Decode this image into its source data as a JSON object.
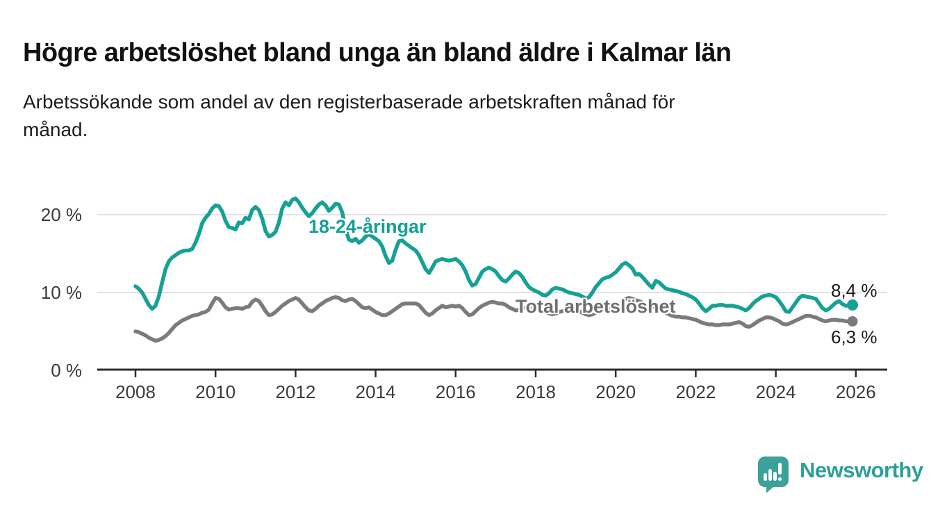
{
  "title": "Högre arbetslöshet bland unga än bland äldre i Kalmar län",
  "subtitle_lines": [
    "Arbetssökande som andel av den registerbaserade arbetskraften månad för",
    "månad."
  ],
  "colors": {
    "accent_teal": "#16a195",
    "line_gray": "#7b7b7e",
    "label_gray": "#6f6f73",
    "gridline": "#d9d9d9",
    "axis": "#2d2d2d",
    "axis_text": "#3a3a3a",
    "text_dark": "#1a1a1a",
    "logo_teal": "#3ba19a",
    "logo_text_teal": "#2ba099"
  },
  "chart_data": {
    "type": "line",
    "title": "Högre arbetslöshet bland unga än bland äldre i Kalmar län",
    "subtitle": "Arbetssökande som andel av den registerbaserade arbetskraften månad för månad.",
    "frequency": "monthly",
    "x_start": "2008-01",
    "x_end": "2025-12",
    "x_tick_labels": [
      "2008",
      "2010",
      "2012",
      "2014",
      "2016",
      "2018",
      "2020",
      "2022",
      "2024",
      "2026"
    ],
    "y_axis": {
      "tick_values": [
        0,
        10,
        20
      ],
      "tick_labels": [
        "0 %",
        "10 %",
        "20 %"
      ]
    },
    "ylim": [
      0,
      23
    ],
    "grid": "horizontal",
    "legend_position": "inline-labels",
    "series": [
      {
        "name": "18-24-åringar",
        "color": "#16a195",
        "end_label": "8,4 %",
        "end_value": 8.4,
        "values": [
          10.8,
          10.5,
          10.0,
          9.2,
          8.4,
          7.9,
          8.3,
          9.5,
          11.3,
          13.0,
          14.0,
          14.5,
          14.8,
          15.1,
          15.3,
          15.4,
          15.4,
          15.6,
          16.4,
          17.5,
          18.9,
          19.6,
          20.1,
          20.8,
          21.2,
          21.1,
          20.4,
          19.2,
          18.4,
          18.3,
          18.1,
          19.0,
          18.9,
          19.6,
          19.4,
          20.6,
          21.0,
          20.6,
          19.5,
          17.9,
          17.2,
          17.4,
          17.8,
          19.0,
          20.8,
          21.6,
          21.2,
          21.9,
          22.1,
          21.6,
          20.9,
          20.3,
          19.8,
          20.2,
          20.8,
          21.3,
          21.6,
          21.2,
          20.5,
          20.9,
          21.4,
          21.3,
          20.3,
          18.2,
          16.8,
          16.6,
          16.9,
          16.4,
          16.7,
          17.2,
          17.5,
          17.2,
          16.9,
          16.6,
          15.9,
          14.7,
          13.8,
          14.1,
          15.5,
          16.6,
          16.7,
          16.3,
          16.0,
          15.7,
          15.4,
          14.8,
          13.9,
          13.0,
          12.5,
          13.2,
          14.0,
          14.2,
          14.3,
          14.2,
          14.1,
          14.2,
          14.3,
          14.0,
          13.5,
          12.7,
          11.6,
          10.9,
          11.1,
          11.9,
          12.7,
          13.0,
          13.2,
          13.0,
          12.7,
          12.1,
          11.6,
          11.4,
          11.8,
          12.3,
          12.7,
          12.5,
          12.0,
          11.3,
          10.7,
          10.4,
          10.2,
          10.0,
          9.7,
          9.6,
          9.9,
          10.4,
          10.6,
          10.5,
          10.4,
          10.2,
          10.0,
          9.9,
          9.8,
          9.7,
          9.5,
          9.2,
          9.4,
          10.0,
          10.7,
          11.2,
          11.7,
          11.9,
          12.0,
          12.3,
          12.6,
          13.1,
          13.6,
          13.8,
          13.5,
          13.1,
          12.3,
          12.4,
          12.0,
          11.5,
          11.0,
          10.6,
          11.5,
          11.3,
          10.9,
          10.5,
          10.4,
          10.3,
          10.2,
          10.1,
          9.9,
          9.8,
          9.6,
          9.4,
          9.1,
          8.6,
          8.0,
          7.6,
          7.9,
          8.3,
          8.3,
          8.4,
          8.4,
          8.3,
          8.3,
          8.3,
          8.2,
          8.1,
          7.9,
          7.7,
          8.0,
          8.5,
          8.9,
          9.2,
          9.5,
          9.6,
          9.7,
          9.6,
          9.4,
          8.9,
          8.3,
          7.6,
          7.5,
          8.1,
          8.7,
          9.3,
          9.6,
          9.5,
          9.4,
          9.3,
          9.2,
          8.6,
          8.0,
          7.7,
          7.9,
          8.3,
          8.7,
          8.9,
          8.5,
          8.3,
          8.3,
          8.4
        ]
      },
      {
        "name": "Total arbetslöshet",
        "color": "#7b7b7e",
        "end_label": "6,3 %",
        "end_value": 6.3,
        "values": [
          5.0,
          4.9,
          4.7,
          4.5,
          4.2,
          4.0,
          3.8,
          3.9,
          4.1,
          4.4,
          4.8,
          5.3,
          5.8,
          6.1,
          6.4,
          6.6,
          6.8,
          7.0,
          7.1,
          7.2,
          7.4,
          7.5,
          7.8,
          8.6,
          9.3,
          9.2,
          8.7,
          8.1,
          7.8,
          7.9,
          8.0,
          8.0,
          7.9,
          8.1,
          8.2,
          8.8,
          9.1,
          8.9,
          8.3,
          7.6,
          7.1,
          7.2,
          7.5,
          7.9,
          8.3,
          8.6,
          8.9,
          9.1,
          9.3,
          9.1,
          8.6,
          8.1,
          7.7,
          7.6,
          7.9,
          8.3,
          8.6,
          8.9,
          9.1,
          9.3,
          9.4,
          9.3,
          9.0,
          8.9,
          9.1,
          9.2,
          8.9,
          8.5,
          8.1,
          8.0,
          8.1,
          7.8,
          7.5,
          7.3,
          7.1,
          7.1,
          7.3,
          7.6,
          7.9,
          8.2,
          8.5,
          8.6,
          8.6,
          8.6,
          8.6,
          8.4,
          7.9,
          7.4,
          7.1,
          7.3,
          7.7,
          8.0,
          8.3,
          8.1,
          8.2,
          8.3,
          8.2,
          8.3,
          8.0,
          7.5,
          7.1,
          7.2,
          7.6,
          8.0,
          8.3,
          8.5,
          8.7,
          8.8,
          8.7,
          8.6,
          8.6,
          8.4,
          8.1,
          7.9,
          7.7,
          7.8,
          8.0,
          8.1,
          8.2,
          8.2,
          8.1,
          8.0,
          7.8,
          7.5,
          7.3,
          7.2,
          7.3,
          7.5,
          7.6,
          7.6,
          7.5,
          7.6,
          7.7,
          7.6,
          7.4,
          7.2,
          7.1,
          7.2,
          7.4,
          7.6,
          7.7,
          7.8,
          7.9,
          8.0,
          8.2,
          8.4,
          8.8,
          9.2,
          9.3,
          9.2,
          9.0,
          8.9,
          8.7,
          8.5,
          8.3,
          8.2,
          8.1,
          7.9,
          7.6,
          7.4,
          7.2,
          7.0,
          6.9,
          6.9,
          6.8,
          6.8,
          6.7,
          6.6,
          6.5,
          6.3,
          6.1,
          6.0,
          5.9,
          5.9,
          5.8,
          5.8,
          5.9,
          5.9,
          5.9,
          6.0,
          6.1,
          6.2,
          6.0,
          5.7,
          5.6,
          5.8,
          6.1,
          6.4,
          6.6,
          6.8,
          6.8,
          6.7,
          6.5,
          6.3,
          6.0,
          5.9,
          6.0,
          6.2,
          6.4,
          6.6,
          6.8,
          7.0,
          7.0,
          6.9,
          6.8,
          6.6,
          6.4,
          6.3,
          6.4,
          6.5,
          6.5,
          6.4,
          6.4,
          6.3,
          6.3,
          6.3
        ]
      }
    ]
  },
  "branding": {
    "logo_text": "Newsworthy",
    "logo_icon": "newsworthy-speech-bubble-bar-chart-icon"
  }
}
